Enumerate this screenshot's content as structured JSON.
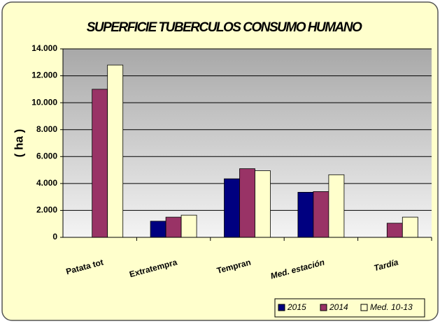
{
  "chart_data": {
    "type": "bar",
    "title": "SUPERFICIE TUBERCULOS CONSUMO HUMANO",
    "y_label": "( ha )",
    "categories": [
      "Patata tot",
      "Extratempra",
      "Tempran",
      "Med. estación",
      "Tardía"
    ],
    "series": [
      {
        "name": "2015",
        "color": "#000080",
        "values": [
          null,
          1200,
          4350,
          3350,
          null
        ]
      },
      {
        "name": "2014",
        "color": "#993366",
        "values": [
          11000,
          1500,
          5100,
          3400,
          1050
        ]
      },
      {
        "name": "Med. 10-13",
        "color": "#ffffcc",
        "values": [
          12800,
          1650,
          4950,
          4650,
          1500
        ]
      }
    ],
    "ylim": [
      0,
      14000
    ],
    "yticks": [
      0,
      {
        "value": 2000,
        "label": "2.000"
      },
      {
        "value": 4000,
        "label": "4.000"
      },
      {
        "value": 6000,
        "label": "6.000"
      },
      {
        "value": 8000,
        "label": "8.000"
      },
      {
        "value": 10000,
        "label": "10.000"
      },
      {
        "value": 12000,
        "label": "12.000"
      },
      {
        "value": 14000,
        "label": "14.000"
      }
    ],
    "grid": true,
    "legend": "bottom-right"
  }
}
